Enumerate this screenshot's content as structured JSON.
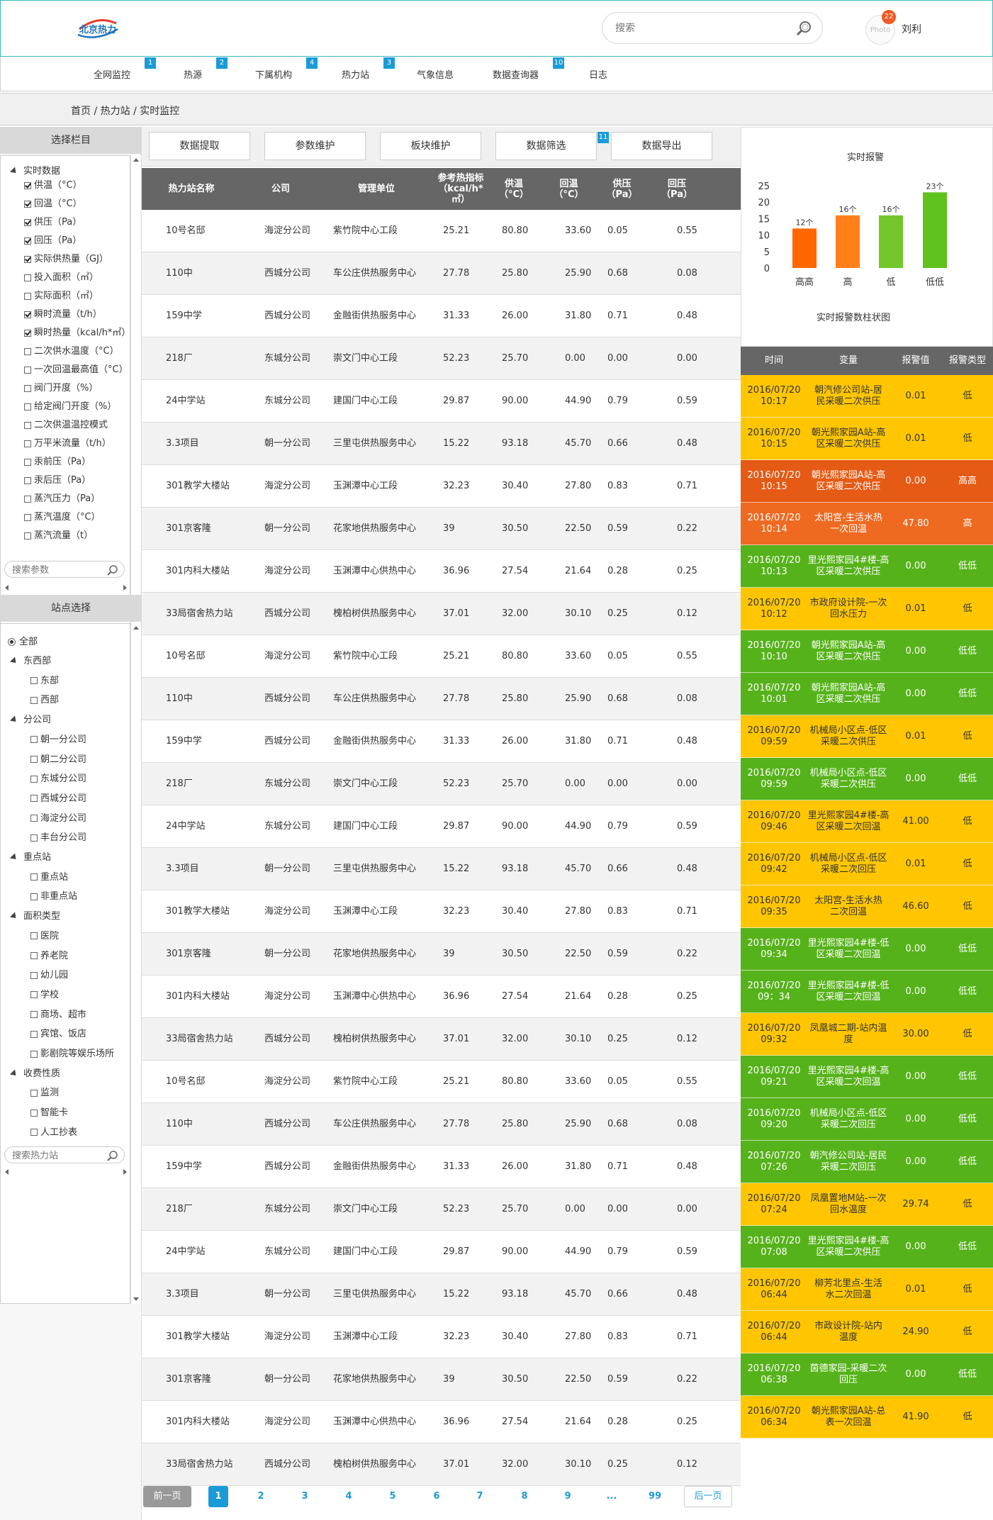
{
  "header": {
    "logo_text": "北京热力",
    "search_placeholder": "搜索",
    "avatar_text": "Photo",
    "notification_count": "22",
    "user_name": "刘利"
  },
  "nav": [
    {
      "label": "全网监控",
      "badge": "1"
    },
    {
      "label": "热源",
      "badge": "2"
    },
    {
      "label": "下属机构",
      "badge": "4"
    },
    {
      "label": "热力站",
      "badge": "3"
    },
    {
      "label": "气象信息",
      "badge": ""
    },
    {
      "label": "数据查询器",
      "badge": "10"
    },
    {
      "label": "日志",
      "badge": ""
    }
  ],
  "breadcrumb": "首页 / 热力站 / 实时监控",
  "column_panel": {
    "title": "选择栏目",
    "group": "实时数据",
    "items": [
      {
        "label": "供温（°C）",
        "checked": true
      },
      {
        "label": "回温（°C）",
        "checked": true
      },
      {
        "label": "供压（Pa）",
        "checked": true
      },
      {
        "label": "回压（Pa）",
        "checked": true
      },
      {
        "label": "实际供热量（GJ）",
        "checked": true
      },
      {
        "label": "投入面积（㎡）",
        "checked": false
      },
      {
        "label": "实际面积（㎡）",
        "checked": false
      },
      {
        "label": "瞬时流量（t/h）",
        "checked": true
      },
      {
        "label": "瞬时热量（kcal/h*㎡）",
        "checked": true
      },
      {
        "label": "二次供水温度（°C）",
        "checked": false
      },
      {
        "label": "一次回温最高值（°C）",
        "checked": false
      },
      {
        "label": "阀门开度（%）",
        "checked": false
      },
      {
        "label": "给定阀门开度（%）",
        "checked": false
      },
      {
        "label": "二次供温温控模式",
        "checked": false
      },
      {
        "label": "万平米流量（t/h）",
        "checked": false
      },
      {
        "label": "汞前压（Pa）",
        "checked": false
      },
      {
        "label": "汞后压（Pa）",
        "checked": false
      },
      {
        "label": "蒸汽压力（Pa）",
        "checked": false
      },
      {
        "label": "蒸汽温度（°C）",
        "checked": false
      },
      {
        "label": "蒸汽流量（t）",
        "checked": false
      }
    ],
    "search_placeholder": "搜索参数"
  },
  "station_panel": {
    "title": "站点选择",
    "all_label": "全部",
    "groups": [
      {
        "label": "东西部",
        "items": [
          "东部",
          "西部"
        ]
      },
      {
        "label": "分公司",
        "items": [
          "朝一分公司",
          "朝二分公司",
          "东城分公司",
          "西城分公司",
          "海淀分公司",
          "丰台分公司"
        ]
      },
      {
        "label": "重点站",
        "items": [
          "重点站",
          "非重点站"
        ]
      },
      {
        "label": "面积类型",
        "items": [
          "医院",
          "养老院",
          "幼儿园",
          "学校",
          "商场、超市",
          "宾馆、饭店",
          "影剧院等娱乐场所"
        ]
      },
      {
        "label": "收费性质",
        "items": [
          "监测",
          "智能卡",
          "人工抄表"
        ]
      }
    ],
    "search_placeholder": "搜索热力站"
  },
  "toolbar": [
    {
      "label": "数据提取",
      "badge": ""
    },
    {
      "label": "参数维护",
      "badge": ""
    },
    {
      "label": "板块维护",
      "badge": ""
    },
    {
      "label": "数据筛选",
      "badge": "11"
    },
    {
      "label": "数据导出",
      "badge": ""
    }
  ],
  "table": {
    "headers": [
      "热力站名称",
      "公司",
      "管理单位",
      "参考热指标\n（kcal/h*㎡）",
      "供温\n（°C）",
      "回温\n（°C）",
      "供压\n（Pa）",
      "回压\n（Pa）"
    ],
    "rows": [
      [
        "10号名邸",
        "海淀分公司",
        "紫竹院中心工段",
        "25.21",
        "80.80",
        "33.60",
        "0.05",
        "0.55"
      ],
      [
        "110中",
        "西城分公司",
        "车公庄供热服务中心",
        "27.78",
        "25.80",
        "25.90",
        "0.68",
        "0.08"
      ],
      [
        "159中学",
        "西城分公司",
        "金融街供热服务中心",
        "31.33",
        "26.00",
        "31.80",
        "0.71",
        "0.48"
      ],
      [
        "218厂",
        "东城分公司",
        "崇文门中心工段",
        "52.23",
        "25.70",
        "0.00",
        "0.00",
        "0.00"
      ],
      [
        "24中学站",
        "东城分公司",
        "建国门中心工段",
        "29.87",
        "90.00",
        "44.90",
        "0.79",
        "0.59"
      ],
      [
        "3.3项目",
        "朝一分公司",
        "三里屯供热服务中心",
        "15.22",
        "93.18",
        "45.70",
        "0.66",
        "0.48"
      ],
      [
        "301教学大楼站",
        "海淀分公司",
        "玉渊潭中心工段",
        "32.23",
        "30.40",
        "27.80",
        "0.83",
        "0.71"
      ],
      [
        "301京客隆",
        "朝一分公司",
        "花家地供热服务中心",
        "39",
        "30.50",
        "22.50",
        "0.59",
        "0.22"
      ],
      [
        "301内科大楼站",
        "海淀分公司",
        "玉渊潭中心供热中心",
        "36.96",
        "27.54",
        "21.64",
        "0.28",
        "0.25"
      ],
      [
        "33局宿舍热力站",
        "西城分公司",
        "槐柏树供热服务中心",
        "37.01",
        "32.00",
        "30.10",
        "0.25",
        "0.12"
      ],
      [
        "10号名邸",
        "海淀分公司",
        "紫竹院中心工段",
        "25.21",
        "80.80",
        "33.60",
        "0.05",
        "0.55"
      ],
      [
        "110中",
        "西城分公司",
        "车公庄供热服务中心",
        "27.78",
        "25.80",
        "25.90",
        "0.68",
        "0.08"
      ],
      [
        "159中学",
        "西城分公司",
        "金融街供热服务中心",
        "31.33",
        "26.00",
        "31.80",
        "0.71",
        "0.48"
      ],
      [
        "218厂",
        "东城分公司",
        "崇文门中心工段",
        "52.23",
        "25.70",
        "0.00",
        "0.00",
        "0.00"
      ],
      [
        "24中学站",
        "东城分公司",
        "建国门中心工段",
        "29.87",
        "90.00",
        "44.90",
        "0.79",
        "0.59"
      ],
      [
        "3.3项目",
        "朝一分公司",
        "三里屯供热服务中心",
        "15.22",
        "93.18",
        "45.70",
        "0.66",
        "0.48"
      ],
      [
        "301教学大楼站",
        "海淀分公司",
        "玉渊潭中心工段",
        "32.23",
        "30.40",
        "27.80",
        "0.83",
        "0.71"
      ],
      [
        "301京客隆",
        "朝一分公司",
        "花家地供热服务中心",
        "39",
        "30.50",
        "22.50",
        "0.59",
        "0.22"
      ],
      [
        "301内科大楼站",
        "海淀分公司",
        "玉渊潭中心供热中心",
        "36.96",
        "27.54",
        "21.64",
        "0.28",
        "0.25"
      ],
      [
        "33局宿舍热力站",
        "西城分公司",
        "槐柏树供热服务中心",
        "37.01",
        "32.00",
        "30.10",
        "0.25",
        "0.12"
      ],
      [
        "10号名邸",
        "海淀分公司",
        "紫竹院中心工段",
        "25.21",
        "80.80",
        "33.60",
        "0.05",
        "0.55"
      ],
      [
        "110中",
        "西城分公司",
        "车公庄供热服务中心",
        "27.78",
        "25.80",
        "25.90",
        "0.68",
        "0.08"
      ],
      [
        "159中学",
        "西城分公司",
        "金融街供热服务中心",
        "31.33",
        "26.00",
        "31.80",
        "0.71",
        "0.48"
      ],
      [
        "218厂",
        "东城分公司",
        "崇文门中心工段",
        "52.23",
        "25.70",
        "0.00",
        "0.00",
        "0.00"
      ],
      [
        "24中学站",
        "东城分公司",
        "建国门中心工段",
        "29.87",
        "90.00",
        "44.90",
        "0.79",
        "0.59"
      ],
      [
        "3.3项目",
        "朝一分公司",
        "三里屯供热服务中心",
        "15.22",
        "93.18",
        "45.70",
        "0.66",
        "0.48"
      ],
      [
        "301教学大楼站",
        "海淀分公司",
        "玉渊潭中心工段",
        "32.23",
        "30.40",
        "27.80",
        "0.83",
        "0.71"
      ],
      [
        "301京客隆",
        "朝一分公司",
        "花家地供热服务中心",
        "39",
        "30.50",
        "22.50",
        "0.59",
        "0.22"
      ],
      [
        "301内科大楼站",
        "海淀分公司",
        "玉渊潭中心供热中心",
        "36.96",
        "27.54",
        "21.64",
        "0.28",
        "0.25"
      ],
      [
        "33局宿舍热力站",
        "西城分公司",
        "槐柏树供热服务中心",
        "37.01",
        "32.00",
        "30.10",
        "0.25",
        "0.12"
      ]
    ]
  },
  "chart_data": {
    "type": "bar",
    "title": "实时报警",
    "xlabel": "实时报警数柱状图",
    "categories": [
      "高高",
      "高",
      "低",
      "低低"
    ],
    "values": [
      12,
      16,
      16,
      23
    ],
    "data_labels": [
      "12个",
      "16个",
      "16个",
      "23个"
    ],
    "colors": [
      "#ff6600",
      "#ff7f19",
      "#72c62a",
      "#5fc21e"
    ],
    "ylim": [
      0,
      25
    ],
    "yticks": [
      "0",
      "5",
      "10",
      "15",
      "20",
      "25"
    ]
  },
  "alarms": {
    "headers": [
      "时间",
      "变量",
      "报警值",
      "报警类型"
    ],
    "colors": {
      "低": "#ffc600",
      "高高": "#e55a14",
      "高": "#ef6a21",
      "低低": "#56b21a"
    },
    "rows": [
      {
        "time": "2016/07/20\n10:17",
        "var": "朝汽修公司站-居\n民采暖二次供压",
        "value": "0.01",
        "type": "低"
      },
      {
        "time": "2016/07/20\n10:15",
        "var": "朝光熙家园A站-高\n区采暖二次供压",
        "value": "0.01",
        "type": "低"
      },
      {
        "time": "2016/07/20\n10:15",
        "var": "朝光熙家园A站-高\n区采暖二次供压",
        "value": "0.00",
        "type": "高高"
      },
      {
        "time": "2016/07/20\n10:14",
        "var": "太阳宫-生活水热\n一次回温",
        "value": "47.80",
        "type": "高"
      },
      {
        "time": "2016/07/20\n10:13",
        "var": "里光熙家园4#楼-高\n区采暖二次供压",
        "value": "0.00",
        "type": "低低"
      },
      {
        "time": "2016/07/20\n10:12",
        "var": "市政府设计院-一次\n回水压力",
        "value": "0.01",
        "type": "低"
      },
      {
        "time": "2016/07/20\n10:10",
        "var": "朝光熙家园A站-高\n区采暖二次供压",
        "value": "0.00",
        "type": "低低"
      },
      {
        "time": "2016/07/20\n10:01",
        "var": "朝光熙家园A站-高\n区采暖二次供压",
        "value": "0.00",
        "type": "低低"
      },
      {
        "time": "2016/07/20\n09:59",
        "var": "机械局小区点-低区\n采暖二次供压",
        "value": "0.01",
        "type": "低"
      },
      {
        "time": "2016/07/20\n09:59",
        "var": "机械局小区点-低区\n采暖二次供压",
        "value": "0.00",
        "type": "低低"
      },
      {
        "time": "2016/07/20\n09:46",
        "var": "里光熙家园4#楼-高\n区采暖二次回温",
        "value": "41.00",
        "type": "低"
      },
      {
        "time": "2016/07/20\n09:42",
        "var": "机械局小区点-低区\n采暖二次回压",
        "value": "0.01",
        "type": "低"
      },
      {
        "time": "2016/07/20\n09:35",
        "var": "太阳宫-生活水热\n二次回温",
        "value": "46.60",
        "type": "低"
      },
      {
        "time": "2016/07/20\n09:34",
        "var": "里光熙家园4#楼-低\n区采暖二次回温",
        "value": "0.00",
        "type": "低低"
      },
      {
        "time": "2016/07/20\n09：34",
        "var": "里光熙家园4#楼-低\n区采暖二次回温",
        "value": "0.00",
        "type": "低低"
      },
      {
        "time": "2016/07/20\n09:32",
        "var": "凤凰城二期-站内温\n度",
        "value": "30.00",
        "type": "低"
      },
      {
        "time": "2016/07/20\n09:21",
        "var": "里光熙家园4#楼-高\n区采暖二次回温",
        "value": "0.00",
        "type": "低低"
      },
      {
        "time": "2016/07/20\n09:20",
        "var": "机械局小区点-低区\n采暖二次回压",
        "value": "0.00",
        "type": "低低"
      },
      {
        "time": "2016/07/20\n07:26",
        "var": "朝汽修公司站-居民\n采暖二次回压",
        "value": "0.00",
        "type": "低低"
      },
      {
        "time": "2016/07/20\n07:24",
        "var": "凤凰置地M站-一次\n回水温度",
        "value": "29.74",
        "type": "低"
      },
      {
        "time": "2016/07/20\n07:08",
        "var": "里光熙家园4#楼-高\n区采暖二次供压",
        "value": "0.00",
        "type": "低低"
      },
      {
        "time": "2016/07/20\n06:44",
        "var": "柳芳北里点-生活\n水二次回温",
        "value": "0.01",
        "type": "低"
      },
      {
        "time": "2016/07/20\n06:44",
        "var": "市政设计院-站内\n温度",
        "value": "24.90",
        "type": "低"
      },
      {
        "time": "2016/07/20\n06:38",
        "var": "茵德家园-采暖二次\n回压",
        "value": "0.00",
        "type": "低低"
      },
      {
        "time": "2016/07/20\n06:34",
        "var": "朝光熙家园A站-总\n表一次回温",
        "value": "41.90",
        "type": "低"
      }
    ]
  },
  "pager": {
    "prev": "前一页",
    "pages": [
      "1",
      "2",
      "3",
      "4",
      "5",
      "6",
      "7",
      "8",
      "9",
      "...",
      "99"
    ],
    "current": "1",
    "next": "后一页"
  }
}
